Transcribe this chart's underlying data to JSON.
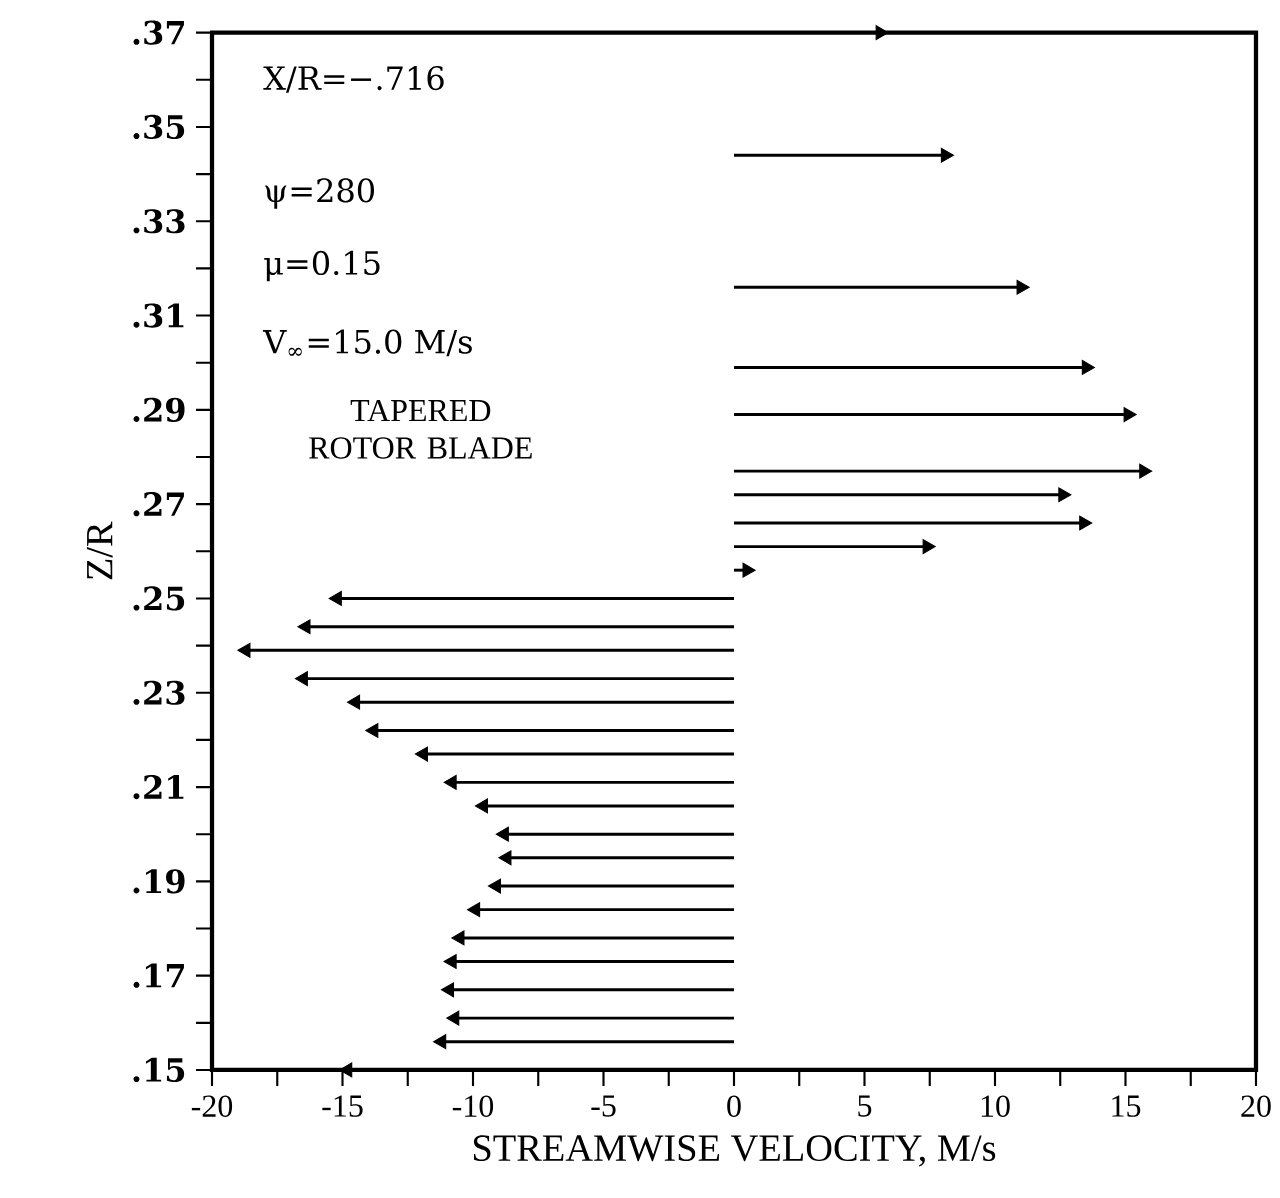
{
  "chart_data": {
    "type": "lollipop",
    "orientation": "horizontal",
    "marker": "triangle",
    "xlabel": "STREAMWISE VELOCITY, M/s",
    "ylabel": "Z/R",
    "annotations": [
      "X/R=−.716",
      "ψ=280",
      "μ=0.15",
      "V$_{∞}$=15.0 M/s",
      "TAPERED ROTOR BLADE"
    ],
    "x": [
      0.37,
      0.344,
      0.316,
      0.299,
      0.289,
      0.277,
      0.272,
      0.266,
      0.261,
      0.256,
      0.25,
      0.244,
      0.239,
      0.233,
      0.228,
      0.222,
      0.217,
      0.211,
      0.206,
      0.2,
      0.195,
      0.189,
      0.184,
      0.178,
      0.173,
      0.167,
      0.161,
      0.156,
      0.15
    ],
    "values": [
      5.6,
      8.1,
      11.0,
      13.5,
      15.1,
      15.7,
      12.6,
      13.4,
      7.4,
      0.5,
      -15.2,
      -16.4,
      -18.7,
      -16.5,
      -14.5,
      -13.8,
      -11.9,
      -10.8,
      -9.6,
      -8.8,
      -8.7,
      -9.1,
      -9.9,
      -10.5,
      -10.8,
      -10.9,
      -10.7,
      -11.2,
      -14.8
    ],
    "color": "#000000",
    "xlim": [
      -20,
      20
    ],
    "xticks": [
      -20,
      {
        "value": -17.5,
        "label": null
      },
      -15,
      {
        "value": -12.5,
        "label": null
      },
      -10,
      {
        "value": -7.5,
        "label": null
      },
      -5,
      {
        "value": -2.5,
        "label": null
      },
      0,
      {
        "value": 2.5,
        "label": null
      },
      5,
      {
        "value": 7.5,
        "label": null
      },
      10,
      {
        "value": 12.5,
        "label": null
      },
      15,
      {
        "value": 17.5,
        "label": null
      },
      20
    ],
    "ylim": [
      0.15,
      0.37
    ],
    "yticks": [
      {
        "value": 0.15,
        "label": ".15"
      },
      {
        "value": 0.16,
        "label": null
      },
      {
        "value": 0.17,
        "label": ".17"
      },
      {
        "value": 0.18,
        "label": null
      },
      {
        "value": 0.19,
        "label": ".19"
      },
      {
        "value": 0.2,
        "label": null
      },
      {
        "value": 0.21,
        "label": ".21"
      },
      {
        "value": 0.22,
        "label": null
      },
      {
        "value": 0.23,
        "label": ".23"
      },
      {
        "value": 0.24,
        "label": null
      },
      {
        "value": 0.25,
        "label": ".25"
      },
      {
        "value": 0.26,
        "label": null
      },
      {
        "value": 0.27,
        "label": ".27"
      },
      {
        "value": 0.28,
        "label": null
      },
      {
        "value": 0.29,
        "label": ".29"
      },
      {
        "value": 0.3,
        "label": null
      },
      {
        "value": 0.31,
        "label": ".31"
      },
      {
        "value": 0.32,
        "label": null
      },
      {
        "value": 0.33,
        "label": ".33"
      },
      {
        "value": 0.34,
        "label": null
      },
      {
        "value": 0.35,
        "label": ".35"
      },
      {
        "value": 0.36,
        "label": null
      },
      {
        "value": 0.37,
        "label": ".37"
      }
    ],
    "grid": false
  }
}
